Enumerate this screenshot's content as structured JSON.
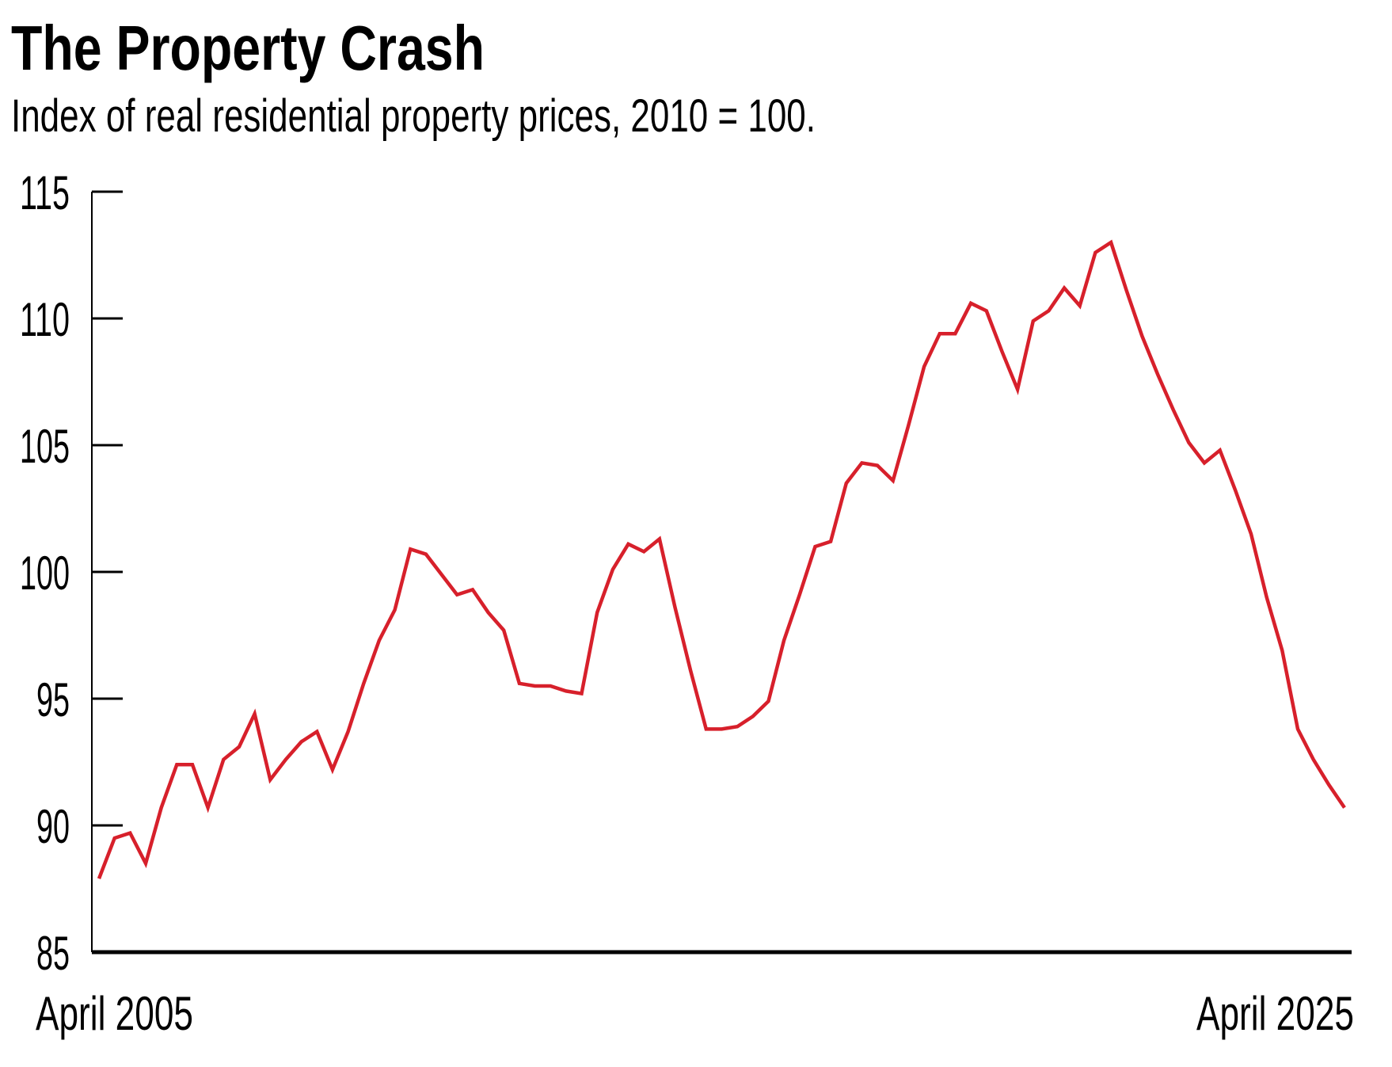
{
  "chart_data": {
    "type": "line",
    "title": "The Property Crash",
    "subtitle": "Index of real residential property prices, 2010 = 100.",
    "xlabel": "",
    "ylabel": "",
    "ylim": [
      85,
      115
    ],
    "yticks": [
      "85",
      "90",
      "95",
      "100",
      "105",
      "110",
      "115"
    ],
    "xtick_labels": [
      "April 2005",
      "April 2025"
    ],
    "x_range": [
      "April 2005",
      "April 2025"
    ],
    "frequency": "quarterly",
    "grid": false,
    "line_color": "#d7202b",
    "series": [
      {
        "name": "Real residential property price index",
        "values": [
          87.9,
          89.5,
          89.7,
          88.5,
          90.7,
          92.4,
          92.4,
          90.7,
          92.6,
          93.1,
          94.4,
          91.8,
          92.6,
          93.3,
          93.7,
          92.2,
          93.7,
          95.6,
          97.3,
          98.5,
          100.9,
          100.7,
          99.9,
          99.1,
          99.3,
          98.4,
          97.7,
          95.6,
          95.5,
          95.5,
          95.3,
          95.2,
          98.4,
          100.1,
          101.1,
          100.8,
          101.3,
          98.6,
          96.1,
          93.8,
          93.8,
          93.9,
          94.3,
          94.9,
          97.3,
          99.1,
          101.0,
          101.2,
          103.5,
          104.3,
          104.2,
          103.6,
          105.8,
          108.1,
          109.4,
          109.4,
          110.6,
          110.3,
          108.7,
          107.2,
          109.9,
          110.3,
          111.2,
          110.5,
          112.6,
          113.0,
          111.1,
          109.3,
          107.8,
          106.4,
          105.1,
          104.3,
          104.8,
          103.2,
          101.5,
          99.0,
          96.9,
          93.8,
          92.6,
          91.6,
          90.7
        ]
      }
    ]
  }
}
